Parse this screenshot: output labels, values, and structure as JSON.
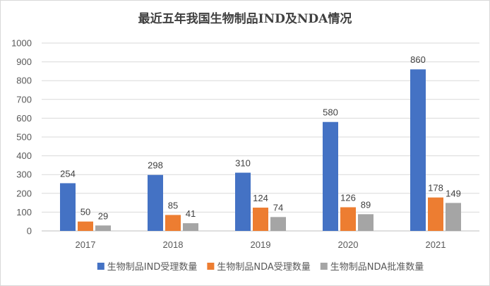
{
  "chart_data": {
    "type": "bar",
    "title": "最近五年我国生物制品IND及NDA情况",
    "xlabel": "",
    "ylabel": "",
    "ylim": [
      0,
      1000
    ],
    "yticks": [
      0,
      100,
      200,
      300,
      400,
      500,
      600,
      700,
      800,
      900,
      1000
    ],
    "grid": true,
    "legend_position": "bottom",
    "categories": [
      "2017",
      "2018",
      "2019",
      "2020",
      "2021"
    ],
    "series": [
      {
        "name": "生物制品IND受理数量",
        "color": "#4472C4",
        "values": [
          254,
          298,
          310,
          580,
          860
        ]
      },
      {
        "name": "生物制品NDA受理数量",
        "color": "#ED7D31",
        "values": [
          50,
          85,
          124,
          126,
          178
        ]
      },
      {
        "name": "生物制品NDA批准数量",
        "color": "#A5A5A5",
        "values": [
          29,
          41,
          74,
          89,
          149
        ]
      }
    ]
  }
}
